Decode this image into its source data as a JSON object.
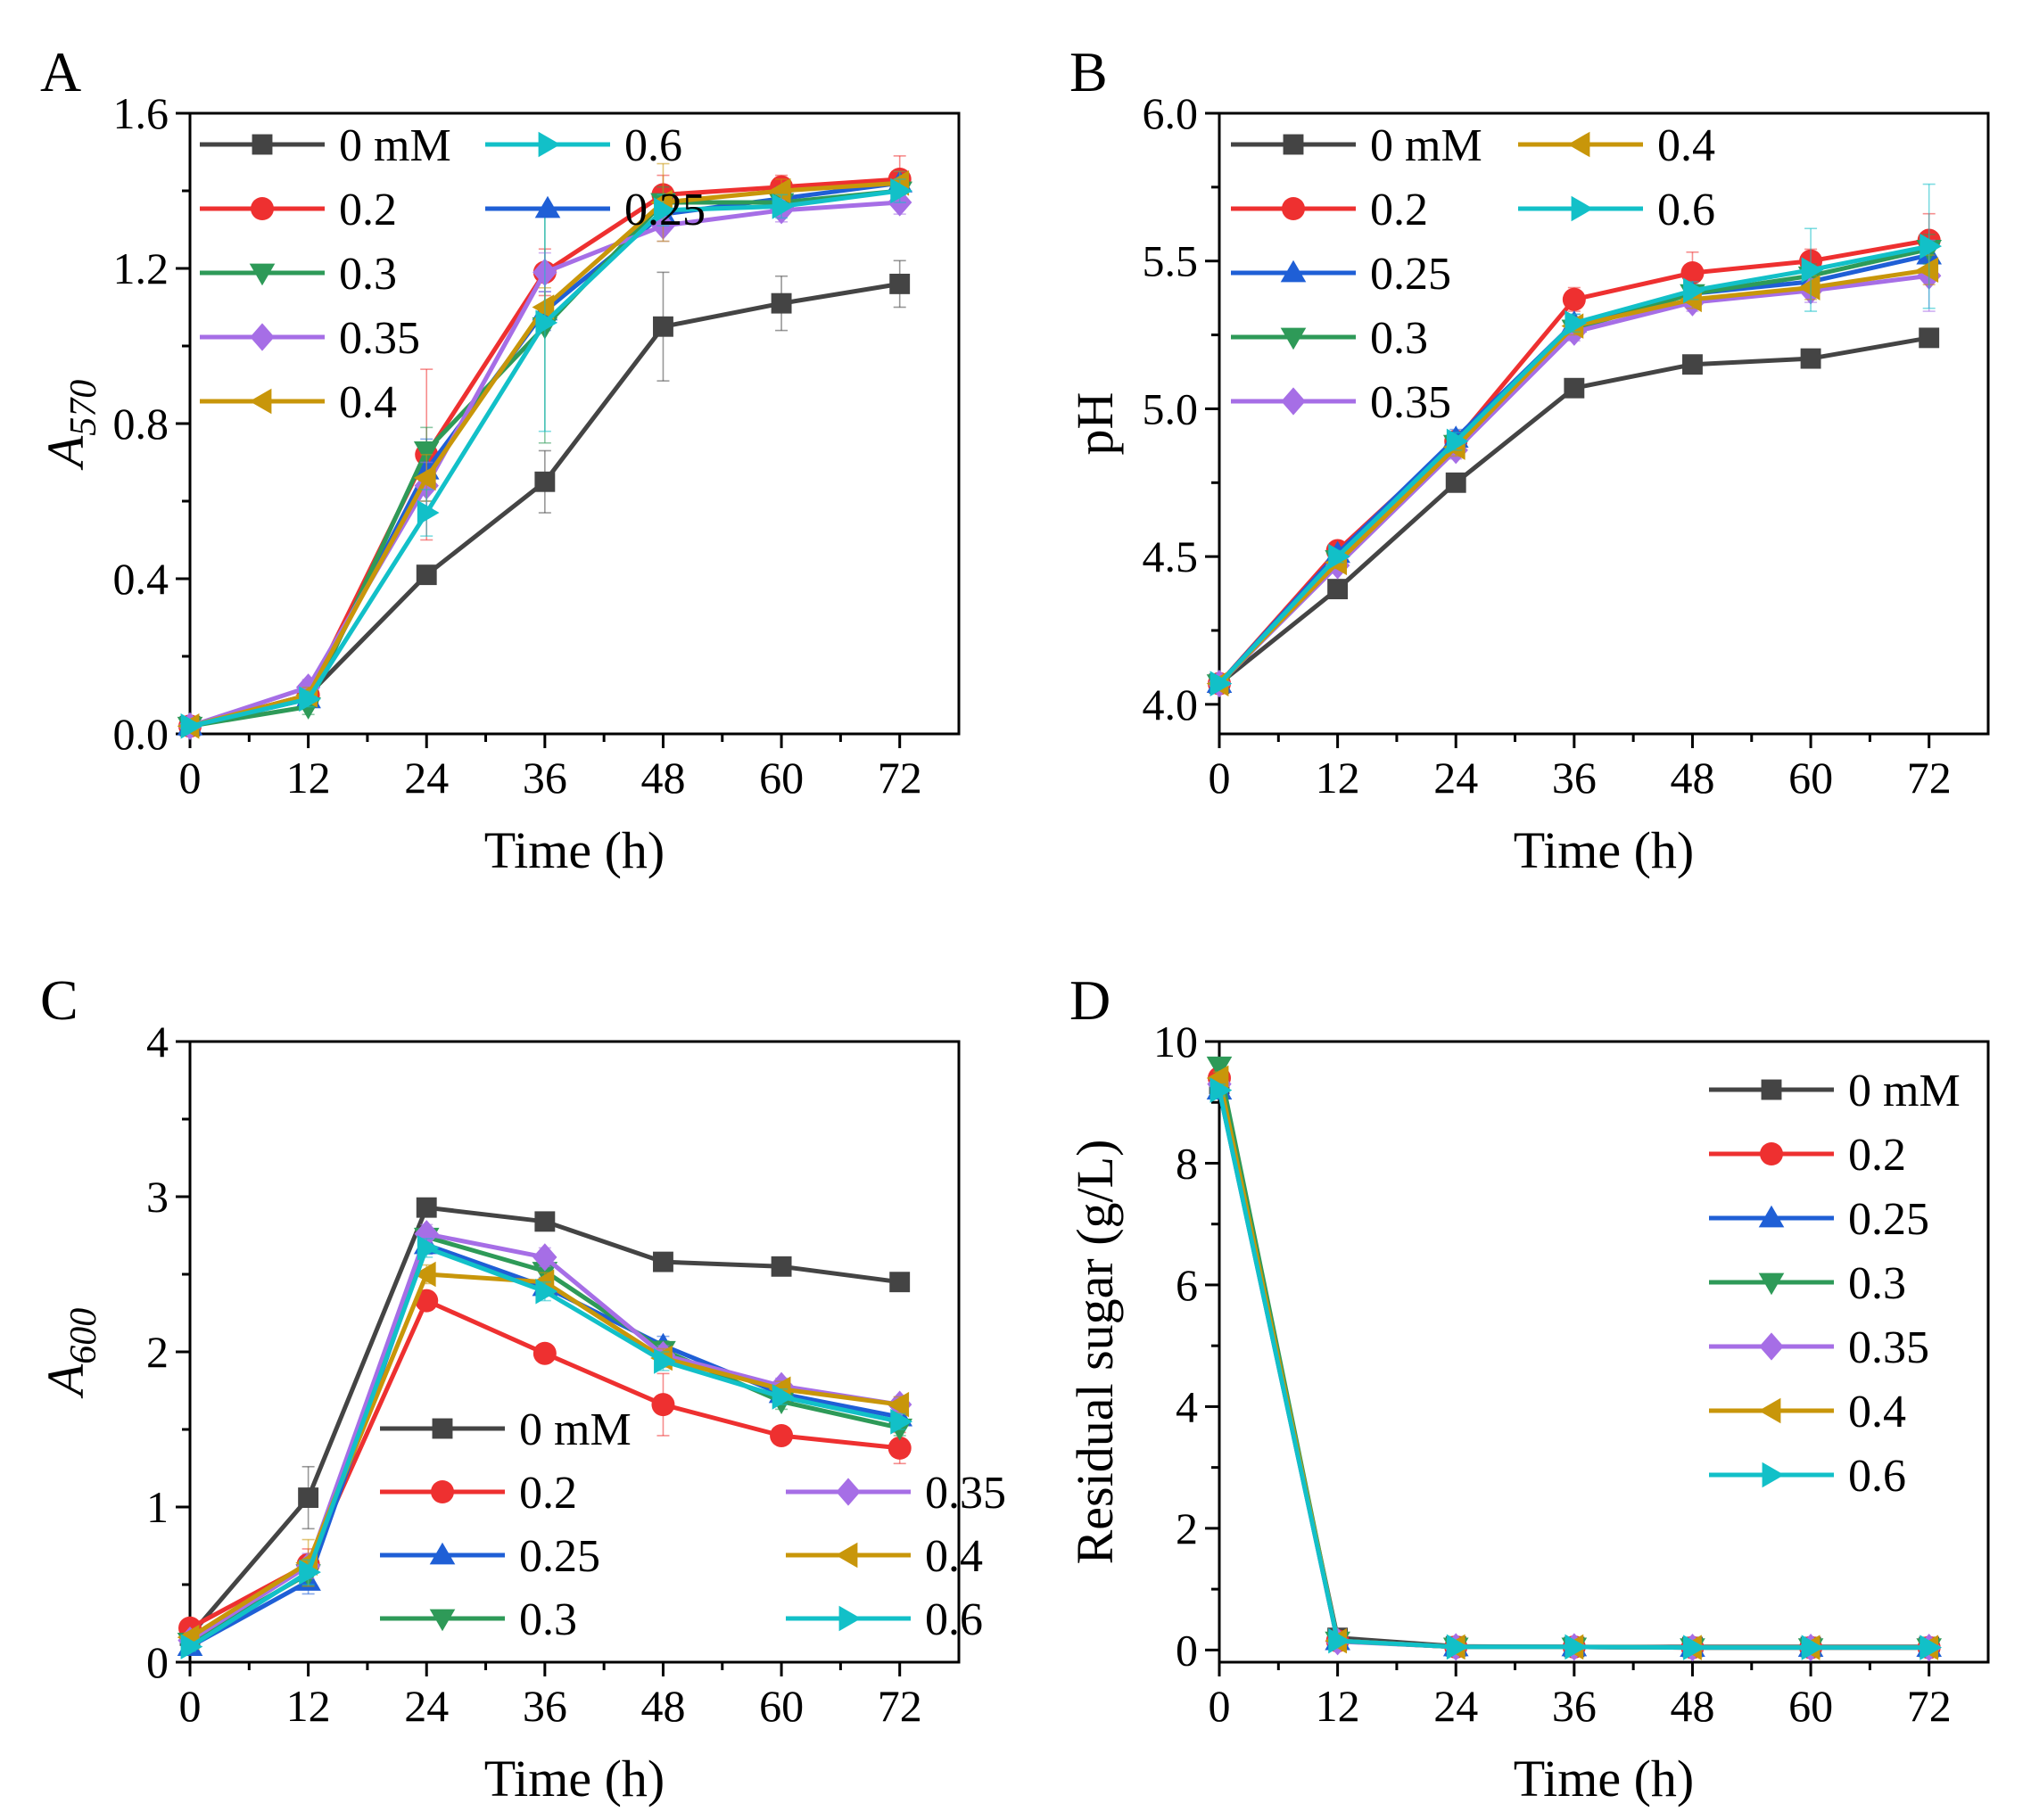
{
  "chart_data": [
    {
      "panel_label": "A",
      "type": "line",
      "xlabel": "Time (h)",
      "ylabel_base": "A",
      "ylabel_sub": "570",
      "x": [
        0,
        12,
        24,
        36,
        48,
        60,
        72
      ],
      "xlim": [
        0,
        78
      ],
      "ylim": [
        0,
        1.6
      ],
      "xticks": [
        0,
        12,
        24,
        36,
        48,
        60,
        72
      ],
      "yticks": [
        0,
        0.4,
        0.8,
        1.2,
        1.6
      ],
      "ytick_labels": [
        "0.0",
        "0.4",
        "0.8",
        "1.2",
        "1.6"
      ],
      "legend_position": "top-left",
      "legend_columns": 2,
      "legend_order": [
        "0 mM",
        "0.6",
        "0.2",
        "0.25",
        "0.3",
        "0.35",
        "0.4"
      ],
      "series": [
        {
          "name": "0 mM",
          "marker": "square",
          "color": "#444444",
          "values": [
            0.02,
            0.1,
            0.41,
            0.65,
            1.05,
            1.11,
            1.16
          ],
          "errors": [
            0.01,
            0.02,
            0.02,
            0.08,
            0.14,
            0.07,
            0.06
          ]
        },
        {
          "name": "0.2",
          "marker": "circle",
          "color": "#ee3030",
          "values": [
            0.02,
            0.1,
            0.72,
            1.19,
            1.39,
            1.41,
            1.43
          ],
          "errors": [
            0.01,
            0.02,
            0.22,
            0.06,
            0.05,
            0.03,
            0.06
          ]
        },
        {
          "name": "0.25",
          "marker": "triangle-up",
          "color": "#1f5fd6",
          "values": [
            0.02,
            0.09,
            0.68,
            1.09,
            1.34,
            1.38,
            1.42
          ],
          "errors": [
            0.01,
            0.02,
            0.08,
            0.05,
            0.04,
            0.03,
            0.03
          ]
        },
        {
          "name": "0.3",
          "marker": "triangle-down",
          "color": "#2e9a58",
          "values": [
            0.02,
            0.07,
            0.73,
            1.05,
            1.37,
            1.37,
            1.4
          ],
          "errors": [
            0.01,
            0.02,
            0.06,
            0.3,
            0.04,
            0.03,
            0.03
          ]
        },
        {
          "name": "0.35",
          "marker": "diamond",
          "color": "#a66ee6",
          "values": [
            0.02,
            0.12,
            0.64,
            1.19,
            1.31,
            1.35,
            1.37
          ],
          "errors": [
            0.01,
            0.02,
            0.06,
            0.05,
            0.04,
            0.03,
            0.03
          ]
        },
        {
          "name": "0.4",
          "marker": "triangle-left",
          "color": "#c8960a",
          "values": [
            0.02,
            0.1,
            0.66,
            1.1,
            1.37,
            1.4,
            1.42
          ],
          "errors": [
            0.01,
            0.02,
            0.06,
            0.05,
            0.1,
            0.03,
            0.03
          ]
        },
        {
          "name": "0.6",
          "marker": "triangle-right",
          "color": "#12c0c8",
          "values": [
            0.02,
            0.09,
            0.57,
            1.06,
            1.35,
            1.36,
            1.4
          ],
          "errors": [
            0.01,
            0.02,
            0.06,
            0.28,
            0.04,
            0.03,
            0.03
          ]
        }
      ]
    },
    {
      "panel_label": "B",
      "type": "line",
      "xlabel": "Time (h)",
      "ylabel_base": "pH",
      "ylabel_sub": "",
      "x": [
        0,
        12,
        24,
        36,
        48,
        60,
        72
      ],
      "xlim": [
        0,
        78
      ],
      "ylim": [
        3.9,
        6.0
      ],
      "xticks": [
        0,
        12,
        24,
        36,
        48,
        60,
        72
      ],
      "yticks": [
        4.0,
        4.5,
        5.0,
        5.5,
        6.0
      ],
      "ytick_labels": [
        "4.0",
        "4.5",
        "5.0",
        "5.5",
        "6.0"
      ],
      "legend_position": "top-left",
      "legend_columns": 2,
      "legend_order": [
        "0 mM",
        "0.4",
        "0.2",
        "0.6",
        "0.25",
        "0.3",
        "0.35"
      ],
      "series": [
        {
          "name": "0 mM",
          "marker": "square",
          "color": "#444444",
          "values": [
            4.07,
            4.39,
            4.75,
            5.07,
            5.15,
            5.17,
            5.24
          ],
          "errors": [
            0.01,
            0.02,
            0.02,
            0.02,
            0.02,
            0.02,
            0.02
          ]
        },
        {
          "name": "0.2",
          "marker": "circle",
          "color": "#ee3030",
          "values": [
            4.07,
            4.52,
            4.89,
            5.37,
            5.46,
            5.5,
            5.57
          ],
          "errors": [
            0.01,
            0.02,
            0.03,
            0.04,
            0.07,
            0.04,
            0.09
          ]
        },
        {
          "name": "0.25",
          "marker": "triangle-up",
          "color": "#1f5fd6",
          "values": [
            4.07,
            4.51,
            4.9,
            5.29,
            5.39,
            5.43,
            5.52
          ],
          "errors": [
            0.01,
            0.02,
            0.03,
            0.03,
            0.03,
            0.03,
            0.04
          ]
        },
        {
          "name": "0.3",
          "marker": "triangle-down",
          "color": "#2e9a58",
          "values": [
            4.07,
            4.49,
            4.88,
            5.27,
            5.39,
            5.45,
            5.54
          ],
          "errors": [
            0.01,
            0.02,
            0.03,
            0.03,
            0.03,
            0.04,
            0.05
          ]
        },
        {
          "name": "0.35",
          "marker": "diamond",
          "color": "#a66ee6",
          "values": [
            4.07,
            4.47,
            4.86,
            5.26,
            5.36,
            5.4,
            5.45
          ],
          "errors": [
            0.01,
            0.02,
            0.03,
            0.03,
            0.03,
            0.04,
            0.12
          ]
        },
        {
          "name": "0.4",
          "marker": "triangle-left",
          "color": "#c8960a",
          "values": [
            4.07,
            4.48,
            4.87,
            5.28,
            5.37,
            5.41,
            5.47
          ],
          "errors": [
            0.01,
            0.02,
            0.03,
            0.03,
            0.03,
            0.04,
            0.05
          ]
        },
        {
          "name": "0.6",
          "marker": "triangle-right",
          "color": "#12c0c8",
          "values": [
            4.07,
            4.5,
            4.89,
            5.29,
            5.4,
            5.47,
            5.55
          ],
          "errors": [
            0.01,
            0.02,
            0.03,
            0.03,
            0.03,
            0.14,
            0.21
          ]
        }
      ]
    },
    {
      "panel_label": "C",
      "type": "line",
      "xlabel": "Time (h)",
      "ylabel_base": "A",
      "ylabel_sub": "600",
      "x": [
        0,
        12,
        24,
        36,
        48,
        60,
        72
      ],
      "xlim": [
        0,
        78
      ],
      "ylim": [
        0,
        4
      ],
      "xticks": [
        0,
        12,
        24,
        36,
        48,
        60,
        72
      ],
      "yticks": [
        0,
        1,
        2,
        3,
        4
      ],
      "ytick_labels": [
        "0",
        "1",
        "2",
        "3",
        "4"
      ],
      "legend_position": "bottom-center",
      "legend_columns": 2,
      "legend_order": [
        "0 mM",
        "0.2",
        "0.35",
        "0.25",
        "0.4",
        "0.3",
        "0.6"
      ],
      "series": [
        {
          "name": "0 mM",
          "marker": "square",
          "color": "#444444",
          "values": [
            0.17,
            1.06,
            2.93,
            2.84,
            2.58,
            2.55,
            2.45
          ],
          "errors": [
            0.03,
            0.2,
            0.05,
            0.05,
            0.05,
            0.05,
            0.05
          ]
        },
        {
          "name": "0.2",
          "marker": "circle",
          "color": "#ee3030",
          "values": [
            0.22,
            0.63,
            2.33,
            1.99,
            1.66,
            1.46,
            1.38
          ],
          "errors": [
            0.03,
            0.1,
            0.06,
            0.06,
            0.2,
            0.05,
            0.1
          ]
        },
        {
          "name": "0.25",
          "marker": "triangle-up",
          "color": "#1f5fd6",
          "values": [
            0.1,
            0.52,
            2.69,
            2.42,
            2.04,
            1.73,
            1.58
          ],
          "errors": [
            0.03,
            0.08,
            0.06,
            0.06,
            0.06,
            0.05,
            0.05
          ]
        },
        {
          "name": "0.3",
          "marker": "triangle-down",
          "color": "#2e9a58",
          "values": [
            0.13,
            0.57,
            2.74,
            2.52,
            2.01,
            1.68,
            1.51
          ],
          "errors": [
            0.03,
            0.08,
            0.06,
            0.06,
            0.06,
            0.05,
            0.05
          ]
        },
        {
          "name": "0.35",
          "marker": "diamond",
          "color": "#a66ee6",
          "values": [
            0.14,
            0.62,
            2.76,
            2.61,
            1.98,
            1.78,
            1.66
          ],
          "errors": [
            0.03,
            0.08,
            0.06,
            0.06,
            0.06,
            0.05,
            0.05
          ]
        },
        {
          "name": "0.4",
          "marker": "triangle-left",
          "color": "#c8960a",
          "values": [
            0.16,
            0.64,
            2.5,
            2.45,
            1.96,
            1.76,
            1.66
          ],
          "errors": [
            0.03,
            0.15,
            0.06,
            0.06,
            0.06,
            0.05,
            0.05
          ]
        },
        {
          "name": "0.6",
          "marker": "triangle-right",
          "color": "#12c0c8",
          "values": [
            0.1,
            0.58,
            2.67,
            2.39,
            1.94,
            1.71,
            1.55
          ],
          "errors": [
            0.03,
            0.08,
            0.06,
            0.06,
            0.06,
            0.05,
            0.05
          ]
        }
      ]
    },
    {
      "panel_label": "D",
      "type": "line",
      "xlabel": "Time (h)",
      "ylabel_base": "Residual sugar (g/L)",
      "ylabel_sub": "",
      "x": [
        0,
        12,
        24,
        36,
        48,
        60,
        72
      ],
      "xlim": [
        0,
        78
      ],
      "ylim": [
        -0.2,
        10
      ],
      "xticks": [
        0,
        12,
        24,
        36,
        48,
        60,
        72
      ],
      "yticks": [
        0,
        2,
        4,
        6,
        8,
        10
      ],
      "ytick_labels": [
        "0",
        "2",
        "4",
        "6",
        "8",
        "10"
      ],
      "legend_position": "top-right",
      "legend_columns": 1,
      "legend_order": [
        "0 mM",
        "0.2",
        "0.25",
        "0.3",
        "0.35",
        "0.4",
        "0.6"
      ],
      "series": [
        {
          "name": "0 mM",
          "marker": "square",
          "color": "#444444",
          "values": [
            9.3,
            0.2,
            0.06,
            0.05,
            0.05,
            0.05,
            0.05
          ],
          "errors": [
            0.1,
            0.05,
            0.02,
            0.02,
            0.02,
            0.02,
            0.02
          ]
        },
        {
          "name": "0.2",
          "marker": "circle",
          "color": "#ee3030",
          "values": [
            9.4,
            0.15,
            0.05,
            0.05,
            0.04,
            0.04,
            0.04
          ],
          "errors": [
            0.1,
            0.05,
            0.02,
            0.02,
            0.02,
            0.02,
            0.02
          ]
        },
        {
          "name": "0.25",
          "marker": "triangle-up",
          "color": "#1f5fd6",
          "values": [
            9.2,
            0.15,
            0.05,
            0.05,
            0.04,
            0.04,
            0.04
          ],
          "errors": [
            0.1,
            0.05,
            0.02,
            0.02,
            0.02,
            0.02,
            0.02
          ]
        },
        {
          "name": "0.3",
          "marker": "triangle-down",
          "color": "#2e9a58",
          "values": [
            9.6,
            0.15,
            0.05,
            0.05,
            0.04,
            0.04,
            0.04
          ],
          "errors": [
            0.1,
            0.05,
            0.02,
            0.02,
            0.02,
            0.02,
            0.02
          ]
        },
        {
          "name": "0.35",
          "marker": "diamond",
          "color": "#a66ee6",
          "values": [
            9.3,
            0.14,
            0.05,
            0.05,
            0.04,
            0.04,
            0.04
          ],
          "errors": [
            0.1,
            0.05,
            0.02,
            0.02,
            0.02,
            0.02,
            0.02
          ]
        },
        {
          "name": "0.4",
          "marker": "triangle-left",
          "color": "#c8960a",
          "values": [
            9.4,
            0.15,
            0.05,
            0.05,
            0.04,
            0.04,
            0.04
          ],
          "errors": [
            0.1,
            0.05,
            0.02,
            0.02,
            0.02,
            0.02,
            0.02
          ]
        },
        {
          "name": "0.6",
          "marker": "triangle-right",
          "color": "#12c0c8",
          "values": [
            9.2,
            0.15,
            0.05,
            0.05,
            0.04,
            0.04,
            0.04
          ],
          "errors": [
            0.1,
            0.05,
            0.02,
            0.02,
            0.02,
            0.02,
            0.02
          ]
        }
      ]
    }
  ]
}
